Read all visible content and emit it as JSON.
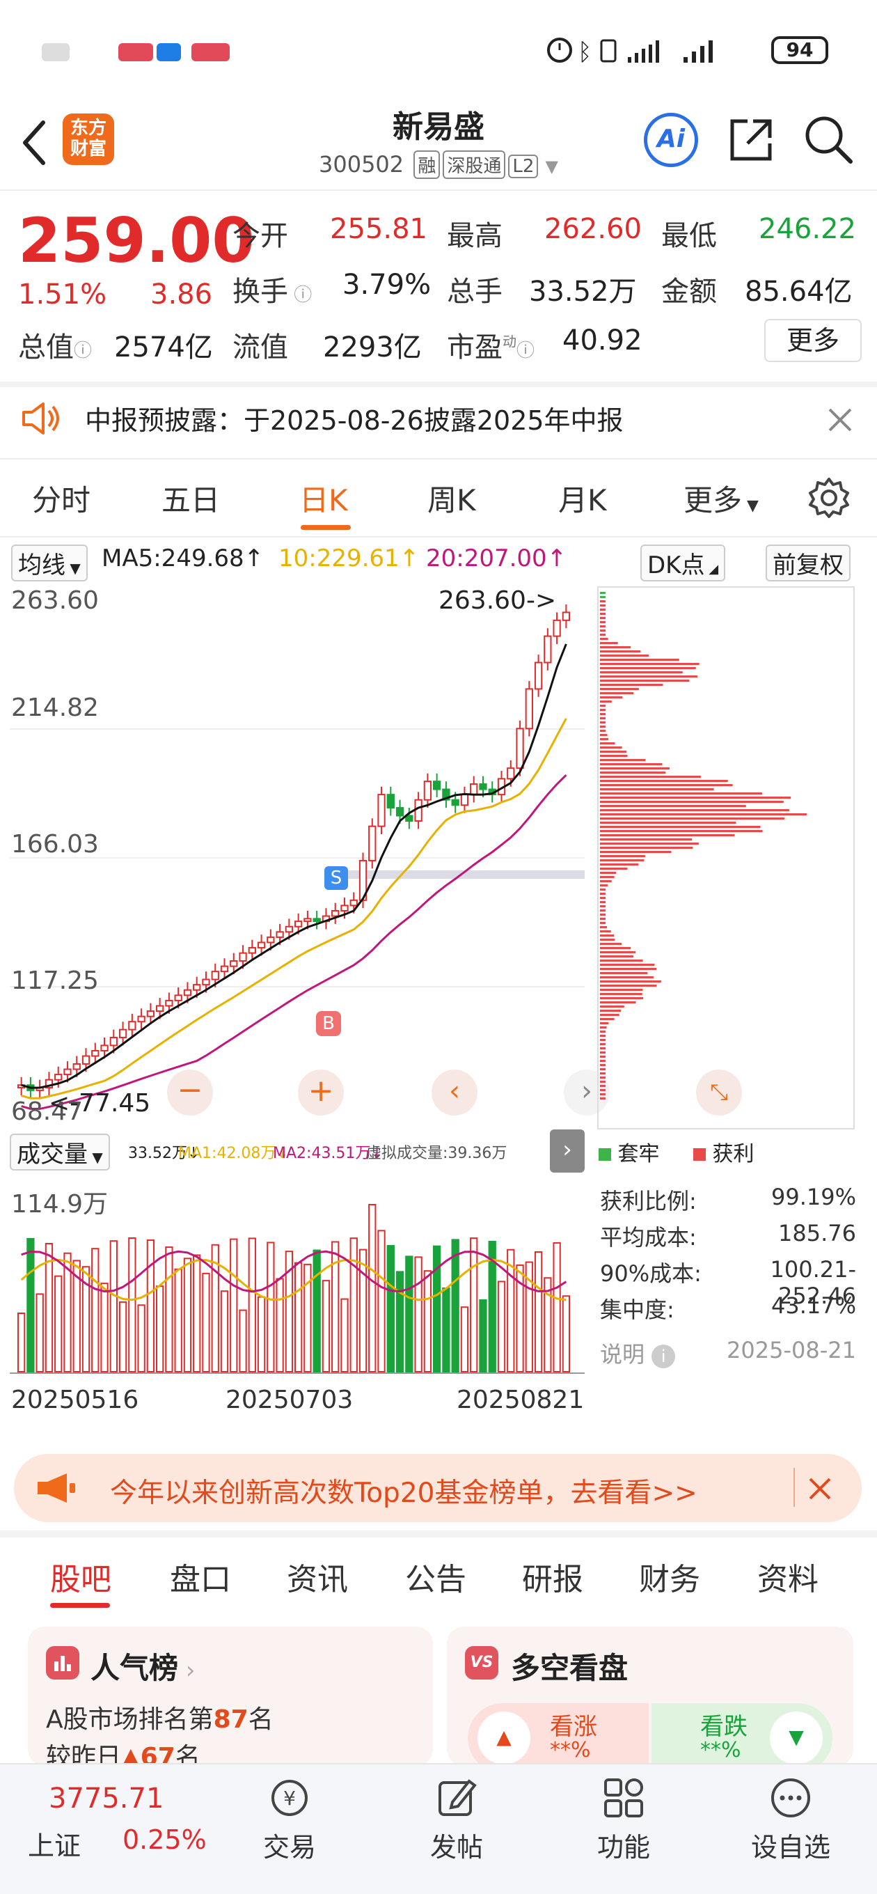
{
  "status_bar": {
    "battery": "94"
  },
  "header": {
    "title": "新易盛",
    "code": "300502",
    "tags": [
      "融",
      "深股通",
      "L2"
    ],
    "ai_label": "Ai"
  },
  "quote": {
    "price": "259.00",
    "change_pct": "1.51%",
    "change": "3.86",
    "open_label": "今开",
    "open": "255.81",
    "high_label": "最高",
    "high": "262.60",
    "low_label": "最低",
    "low": "246.22",
    "turnover_label": "换手",
    "turnover": "3.79%",
    "volume_label": "总手",
    "volume": "33.52万",
    "amount_label": "金额",
    "amount": "85.64亿",
    "mktcap_label": "总值",
    "mktcap": "2574亿",
    "float_label": "流值",
    "float": "2293亿",
    "pe_label": "市盈",
    "pe_sup": "动",
    "pe": "40.92",
    "more_button": "更多"
  },
  "notice": {
    "text": "中报预披露：于2025-08-26披露2025年中报"
  },
  "kline_tabs": [
    "分时",
    "五日",
    "日K",
    "周K",
    "月K",
    "更多"
  ],
  "kline_active": 2,
  "ma_bar": {
    "selector": "均线",
    "ma5": "MA5:249.68",
    "ma10": "10:229.61",
    "ma20": "20:207.00",
    "dk_button": "DK点",
    "adjust_button": "前复权"
  },
  "price_axis": [
    "263.60",
    "214.82",
    "166.03",
    "117.25",
    "68.47"
  ],
  "price_annotations": {
    "high": "263.60->",
    "low": "<-77.45"
  },
  "trade_marks": {
    "sell": "S",
    "buy": "B"
  },
  "volume_bar": {
    "selector": "成交量",
    "vol": "33.52万",
    "ma1": "MA1:42.08万",
    "ma2": "MA2:43.51万",
    "virtual": "虚拟成交量:39.36万"
  },
  "volume_axis_max": "114.9万",
  "date_axis": [
    "20250516",
    "20250703",
    "20250821"
  ],
  "chip_legend": {
    "trapped": "套牢",
    "profit": "获利"
  },
  "chip_stats": [
    {
      "label": "获利比例:",
      "value": "99.19%"
    },
    {
      "label": "平均成本:",
      "value": "185.76"
    },
    {
      "label": "90%成本:",
      "value": "100.21-252.46"
    },
    {
      "label": "集中度:",
      "value": "43.17%"
    }
  ],
  "chip_note": {
    "label": "说明",
    "date": "2025-08-21"
  },
  "promo": {
    "text": "今年以来创新高次数Top20基金榜单，去看看>>"
  },
  "section_tabs": [
    "股吧",
    "盘口",
    "资讯",
    "公告",
    "研报",
    "财务",
    "资料"
  ],
  "popularity_card": {
    "title": "人气榜",
    "rank_prefix": "A股市场排名第",
    "rank": "87",
    "rank_suffix": "名",
    "change_text": "较昨日",
    "change_value": "67",
    "change_suffix": "名"
  },
  "sentiment_card": {
    "title": "多空看盘",
    "bull_label": "看涨",
    "bull_value": "**%",
    "bear_label": "看跌",
    "bear_value": "**%"
  },
  "bottom_nav": {
    "index_value": "3775.71",
    "index_name": "上证",
    "index_pct": "0.25%",
    "items": [
      "交易",
      "发帖",
      "功能",
      "设自选"
    ]
  },
  "colors": {
    "up": "#e12b2b",
    "down": "#1aa33a",
    "brand": "#f06a1c",
    "ma5": "#111111",
    "ma10": "#e8b100",
    "ma20": "#c0187a"
  },
  "chart_data": {
    "type": "candlestick",
    "price_axis": [
      68.47,
      117.25,
      166.03,
      214.82,
      263.6
    ],
    "ylim": [
      68.47,
      263.6
    ],
    "close": [
      80,
      78,
      79,
      82,
      84,
      86,
      88,
      91,
      93,
      95,
      98,
      101,
      104,
      106,
      108,
      110,
      112,
      114,
      116,
      118,
      120,
      123,
      125,
      127,
      130,
      132,
      134,
      136,
      138,
      140,
      142,
      143,
      142,
      144,
      146,
      148,
      150,
      165,
      178,
      190,
      185,
      182,
      180,
      188,
      195,
      192,
      188,
      186,
      190,
      194,
      192,
      190,
      196,
      200,
      215,
      230,
      240,
      250,
      256,
      259
    ],
    "volume_max_label": "114.9万"
  }
}
